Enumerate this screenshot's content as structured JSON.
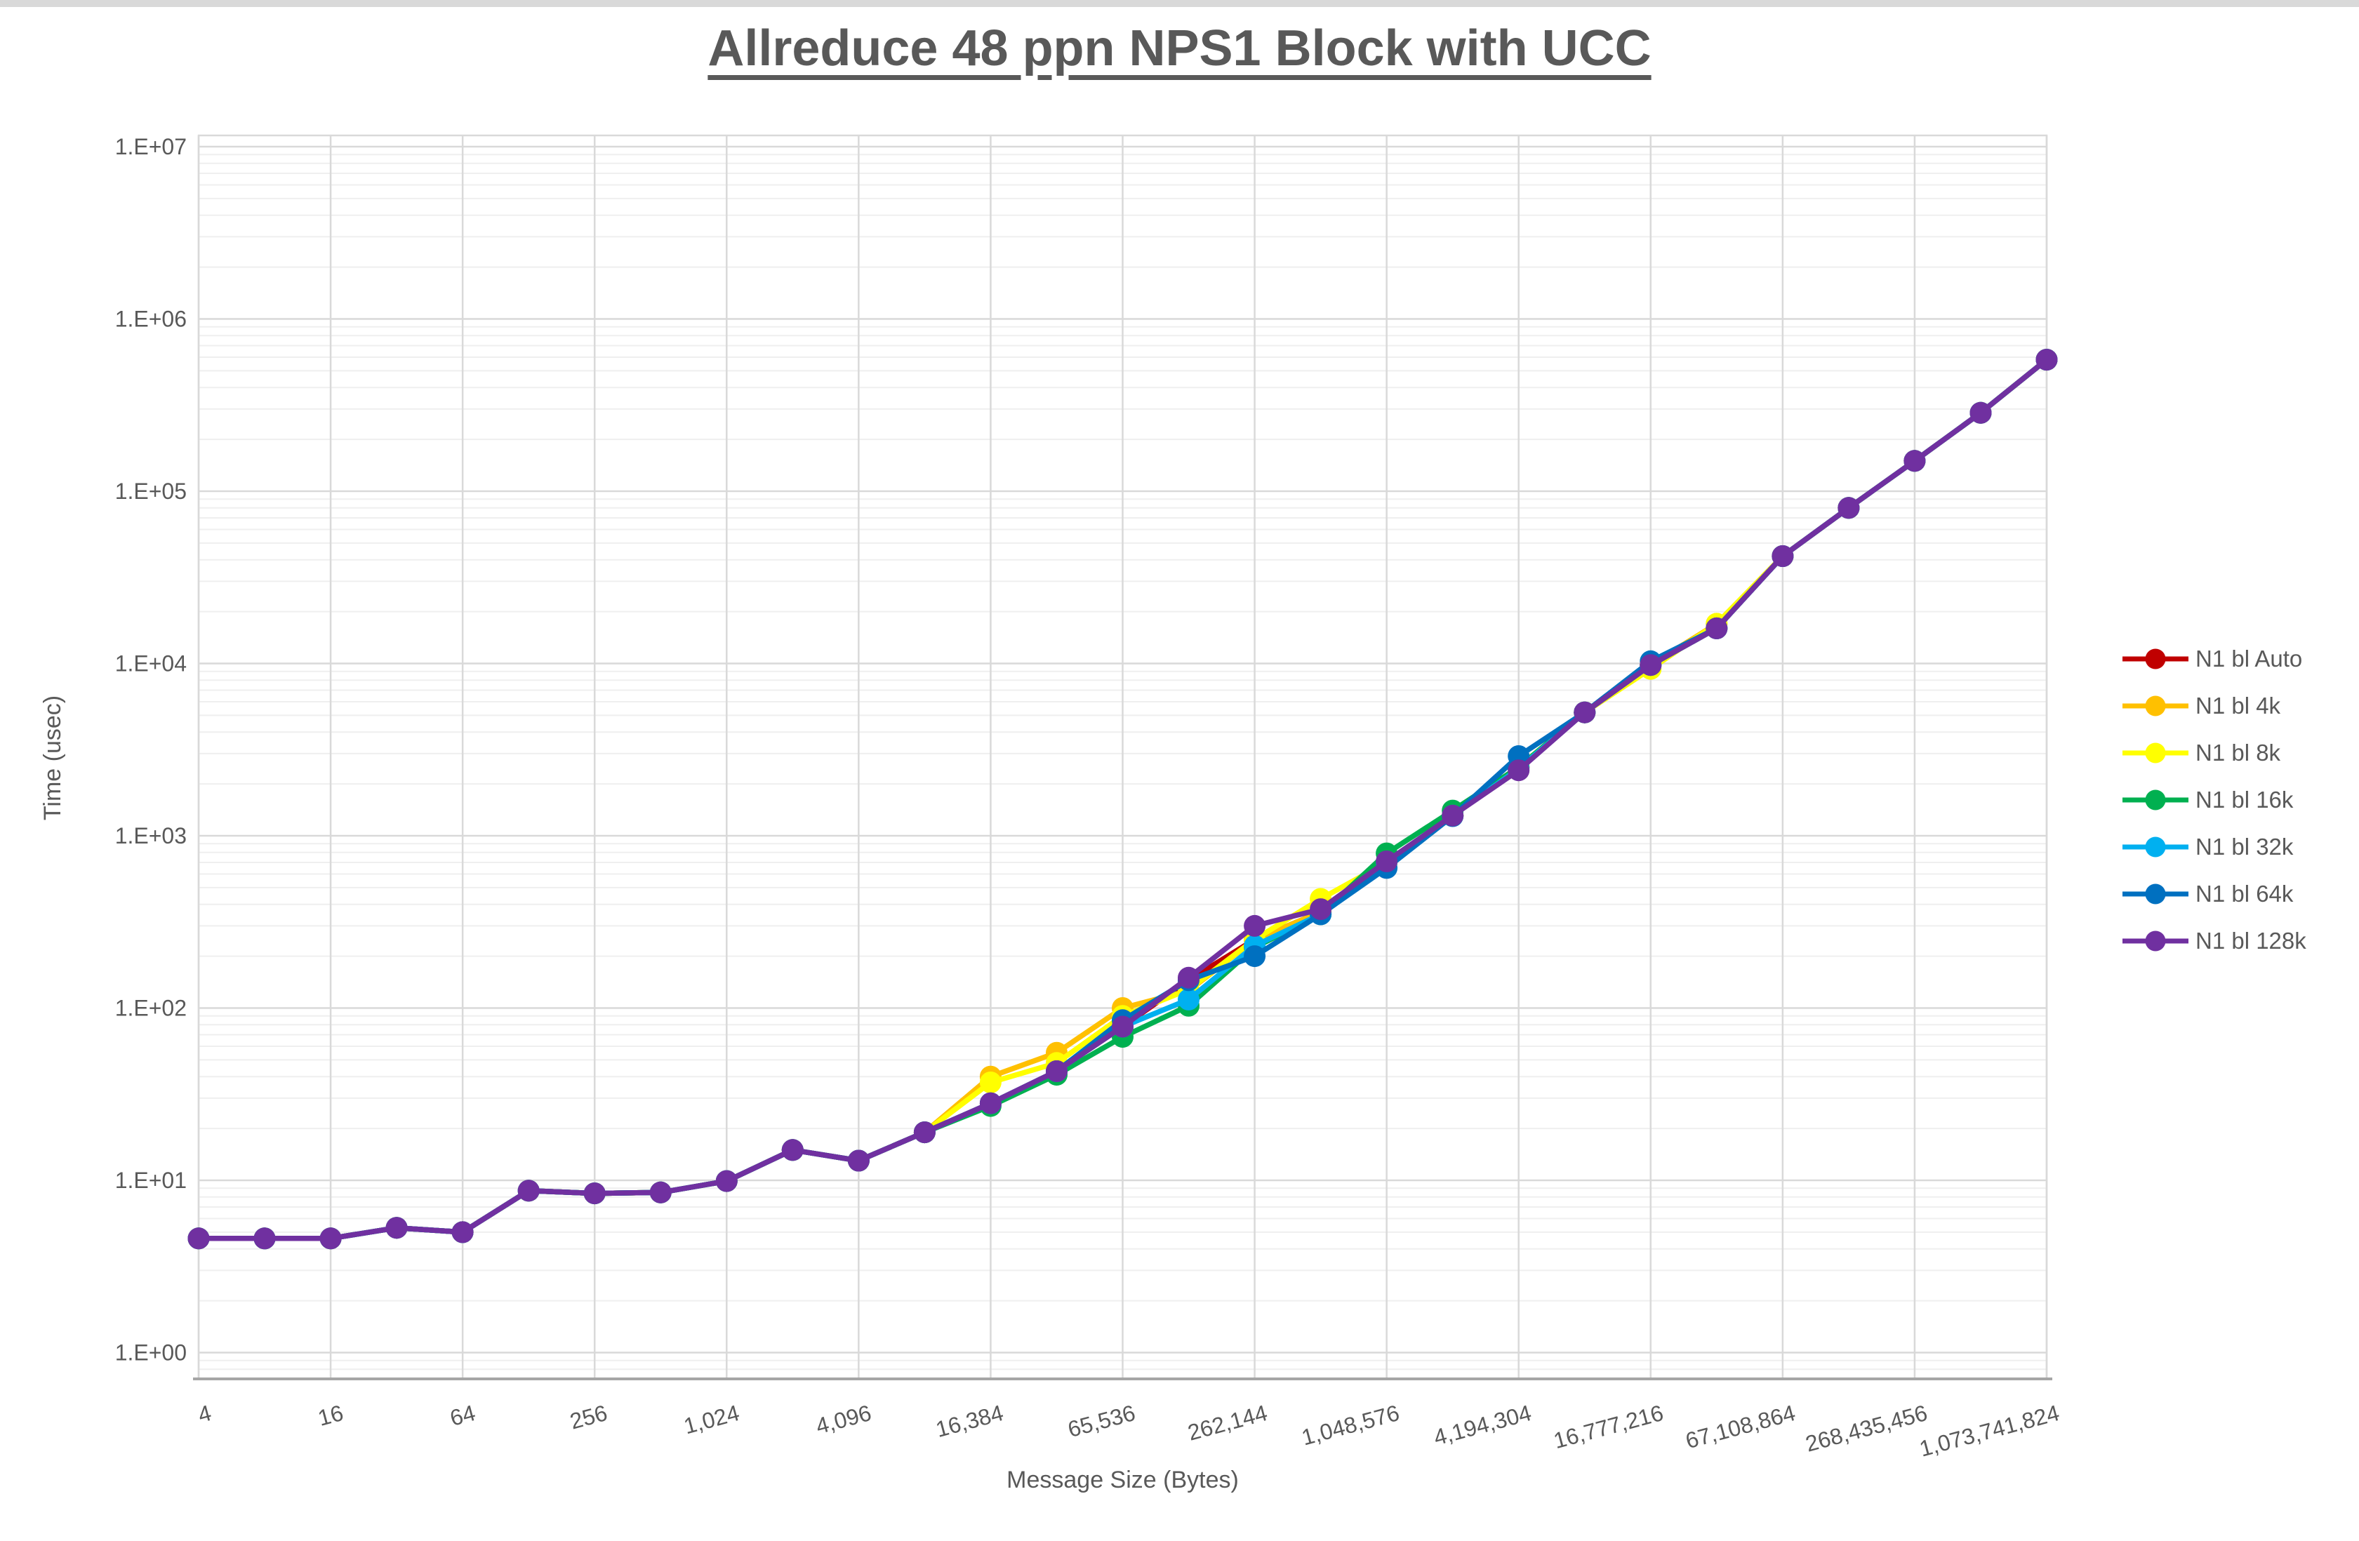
{
  "chart_data": {
    "type": "line",
    "title": "Allreduce 48 ppn NPS1 Block with UCC",
    "xlabel": "Message Size (Bytes)",
    "ylabel": "Time (usec)",
    "x_scale": "log2",
    "y_scale": "log10",
    "xlim": [
      4,
      1073741824
    ],
    "ylim": [
      0.7,
      10000000
    ],
    "grid": "horizontal major+minor log gridlines, vertical major gridlines",
    "legend_position": "right",
    "x": [
      4,
      8,
      16,
      32,
      64,
      128,
      256,
      512,
      1024,
      2048,
      4096,
      8192,
      16384,
      32768,
      65536,
      131072,
      262144,
      524288,
      1048576,
      2097152,
      4194304,
      8388608,
      16777216,
      33554432,
      67108864,
      134217728,
      268435456,
      536870912,
      1073741824
    ],
    "x_tick_labels": [
      "4",
      "16",
      "64",
      "256",
      "1,024",
      "4,096",
      "16,384",
      "65,536",
      "262,144",
      "1,048,576",
      "4,194,304",
      "16,777,216",
      "67,108,864",
      "268,435,456",
      "1,073,741,824"
    ],
    "y_tick_labels": [
      "1.E+00",
      "1.E+01",
      "1.E+02",
      "1.E+03",
      "1.E+04",
      "1.E+05",
      "1.E+06",
      "1.E+07"
    ],
    "series": [
      {
        "name": "N1 bl Auto",
        "color": "#C00000",
        "values": [
          4.6,
          4.6,
          4.6,
          5.3,
          5,
          8.7,
          8.4,
          8.5,
          9.9,
          15,
          13,
          19,
          28,
          43,
          78,
          145,
          250,
          360,
          700,
          1310,
          2500,
          5200,
          9800,
          16000,
          42000,
          80000,
          150000,
          285000,
          580000
        ]
      },
      {
        "name": "N1 bl 4k",
        "color": "#FFC000",
        "values": [
          4.6,
          4.6,
          4.6,
          5.3,
          5,
          8.7,
          8.4,
          8.5,
          9.9,
          15,
          13,
          19,
          40,
          55,
          100,
          126,
          250,
          360,
          700,
          1310,
          2500,
          5200,
          9800,
          17000,
          42000,
          80000,
          150000,
          285000,
          580000
        ]
      },
      {
        "name": "N1 bl 8k",
        "color": "#FFFF00",
        "values": [
          4.6,
          4.6,
          4.6,
          5.3,
          5,
          8.7,
          8.4,
          8.5,
          9.9,
          15,
          13,
          19,
          37,
          48,
          90,
          128,
          250,
          430,
          700,
          1310,
          2500,
          5200,
          9300,
          17000,
          42000,
          80000,
          150000,
          285000,
          580000
        ]
      },
      {
        "name": "N1 bl 16k",
        "color": "#00B050",
        "values": [
          4.6,
          4.6,
          4.6,
          5.3,
          5,
          8.7,
          8.4,
          8.5,
          9.9,
          15,
          13,
          19,
          27,
          41,
          68,
          103,
          225,
          350,
          790,
          1400,
          2500,
          5200,
          9800,
          16000,
          42000,
          80000,
          150000,
          285000,
          580000
        ]
      },
      {
        "name": "N1 bl 32k",
        "color": "#00B0F0",
        "values": [
          4.6,
          4.6,
          4.6,
          5.3,
          5,
          8.7,
          8.4,
          8.5,
          9.9,
          15,
          13,
          19,
          28,
          43,
          78,
          112,
          230,
          350,
          700,
          1310,
          2450,
          5200,
          9800,
          16000,
          42000,
          80000,
          150000,
          285000,
          580000
        ]
      },
      {
        "name": "N1 bl 64k",
        "color": "#0070C0",
        "values": [
          4.6,
          4.6,
          4.6,
          5.3,
          5,
          8.7,
          8.4,
          8.5,
          9.9,
          15,
          13,
          19,
          28,
          43,
          85,
          145,
          200,
          350,
          650,
          1300,
          2900,
          5200,
          10300,
          16000,
          42000,
          80000,
          150000,
          285000,
          580000
        ]
      },
      {
        "name": "N1 bl 128k",
        "color": "#7030A0",
        "values": [
          4.6,
          4.6,
          4.6,
          5.3,
          5,
          8.7,
          8.4,
          8.5,
          9.9,
          15,
          13,
          19,
          28,
          43,
          78,
          150,
          300,
          375,
          710,
          1310,
          2400,
          5200,
          9800,
          16000,
          42000,
          80000,
          150000,
          285000,
          580000
        ]
      }
    ]
  }
}
